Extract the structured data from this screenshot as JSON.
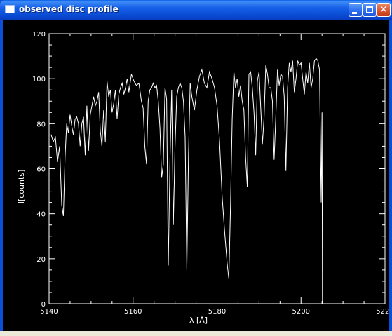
{
  "window": {
    "title": "observed disc profile",
    "icon": "window-app-icon",
    "controls": [
      "minimize-icon",
      "maximize-icon",
      "close-icon"
    ],
    "titlebar_color": "#0a5fe8",
    "close_color": "#d8512d"
  },
  "chart_data": {
    "type": "line",
    "title": "",
    "xlabel": "λ [Å]",
    "ylabel": "I[counts]",
    "xlim": [
      5140,
      5220
    ],
    "ylim": [
      0,
      120
    ],
    "x_ticks": [
      5140,
      5160,
      5180,
      5200,
      5220
    ],
    "y_ticks": [
      0,
      20,
      40,
      60,
      80,
      100,
      120
    ],
    "grid": false,
    "background": "#000000",
    "line_color": "#ffffff",
    "series": [
      {
        "x": [
          5140.5,
          5141.0,
          5141.5,
          5142.0,
          5142.5,
          5143.0,
          5143.4,
          5143.8,
          5144.2,
          5144.6,
          5145.0,
          5145.4,
          5145.8,
          5146.2,
          5146.6,
          5147.0,
          5147.4,
          5147.8,
          5148.2,
          5148.6,
          5149.0,
          5149.4,
          5149.8,
          5150.2,
          5150.6,
          5151.0,
          5151.4,
          5151.8,
          5152.2,
          5152.6,
          5153.0,
          5153.4,
          5153.8,
          5154.2,
          5154.6,
          5155.0,
          5155.4,
          5155.8,
          5156.2,
          5156.6,
          5157.0,
          5157.4,
          5157.8,
          5158.2,
          5158.6,
          5159.0,
          5159.6,
          5160.2,
          5160.8,
          5161.4,
          5162.0,
          5162.4,
          5162.8,
          5163.2,
          5163.6,
          5164.0,
          5164.4,
          5164.8,
          5165.2,
          5165.6,
          5166.0,
          5166.4,
          5166.8,
          5167.2,
          5167.6,
          5168.0,
          5168.4,
          5168.8,
          5169.2,
          5169.6,
          5170.0,
          5170.4,
          5170.8,
          5171.2,
          5171.6,
          5172.0,
          5172.4,
          5172.8,
          5173.2,
          5173.6,
          5174.0,
          5174.6,
          5175.2,
          5175.8,
          5176.4,
          5177.0,
          5177.6,
          5178.2,
          5178.8,
          5179.4,
          5180.0,
          5180.6,
          5181.2,
          5181.8,
          5182.4,
          5182.8,
          5183.2,
          5183.6,
          5184.0,
          5184.4,
          5184.8,
          5185.2,
          5185.6,
          5186.0,
          5186.4,
          5186.8,
          5187.2,
          5187.6,
          5188.0,
          5188.4,
          5188.8,
          5189.2,
          5189.6,
          5190.0,
          5190.4,
          5190.8,
          5191.2,
          5191.6,
          5192.0,
          5192.4,
          5192.8,
          5193.2,
          5193.6,
          5194.0,
          5194.4,
          5194.8,
          5195.2,
          5195.6,
          5196.0,
          5196.4,
          5196.8,
          5197.2,
          5197.6,
          5198.0,
          5198.4,
          5198.8,
          5199.2,
          5199.6,
          5200.0,
          5200.4,
          5200.8,
          5201.2,
          5201.6,
          5202.0,
          5202.4,
          5202.8,
          5203.2,
          5203.6,
          5204.0,
          5204.4,
          5204.8,
          5205.0,
          5205.1
        ],
        "y": [
          75,
          72,
          74,
          63,
          70,
          44,
          39,
          65,
          80,
          76,
          84,
          79,
          75,
          82,
          83,
          80,
          70,
          80,
          83,
          66,
          88,
          68,
          84,
          88,
          92,
          88,
          90,
          94,
          77,
          70,
          86,
          72,
          99,
          92,
          95,
          85,
          89,
          95,
          82,
          93,
          96,
          98,
          93,
          96,
          100,
          94,
          102,
          99,
          97,
          98,
          90,
          87,
          70,
          62,
          90,
          95,
          96,
          98,
          96,
          97,
          90,
          78,
          56,
          62,
          96,
          91,
          17,
          64,
          95,
          35,
          70,
          92,
          96,
          98,
          96,
          90,
          74,
          15,
          66,
          98,
          92,
          86,
          95,
          101,
          104,
          98,
          96,
          103,
          100,
          96,
          88,
          72,
          48,
          32,
          18,
          11,
          43,
          82,
          103,
          96,
          100,
          92,
          97,
          90,
          86,
          65,
          52,
          102,
          103,
          96,
          85,
          66,
          99,
          103,
          87,
          71,
          83,
          106,
          102,
          96,
          96,
          90,
          64,
          83,
          104,
          97,
          102,
          101,
          92,
          59,
          96,
          107,
          103,
          108,
          94,
          100,
          108,
          106,
          107,
          100,
          93,
          103,
          98,
          107,
          96,
          100,
          108,
          109,
          108,
          104,
          45,
          85,
          0
        ]
      }
    ]
  }
}
